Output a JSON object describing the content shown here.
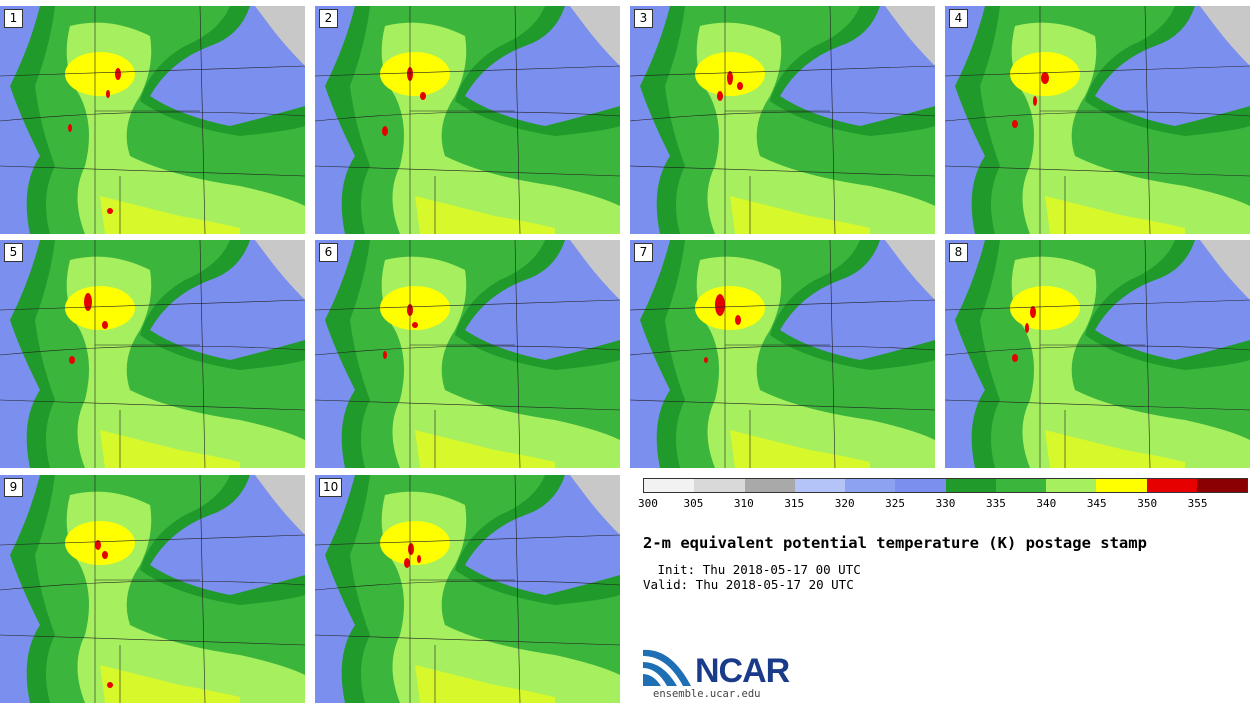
{
  "title": "2-m equivalent potential temperature (K) postage stamp",
  "init_line": " Init: Thu 2018-05-17 00 UTC",
  "valid_line": "Valid: Thu 2018-05-17 20 UTC",
  "logo": {
    "name": "NCAR",
    "url": "ensemble.ucar.edu"
  },
  "members": [
    {
      "label": "1"
    },
    {
      "label": "2"
    },
    {
      "label": "3"
    },
    {
      "label": "4"
    },
    {
      "label": "5"
    },
    {
      "label": "6"
    },
    {
      "label": "7"
    },
    {
      "label": "8"
    },
    {
      "label": "9"
    },
    {
      "label": "10"
    }
  ],
  "colorbar": {
    "ticks": [
      "300",
      "305",
      "310",
      "315",
      "320",
      "325",
      "330",
      "335",
      "340",
      "345",
      "350",
      "355"
    ],
    "colors": [
      "#f2f2f2",
      "#d9d9d9",
      "#a9a9a9",
      "#b4c4f8",
      "#8ea2f2",
      "#7b8fef",
      "#1f9a2b",
      "#3cb53c",
      "#a6ef5e",
      "#ffff00",
      "#e60000",
      "#8b0000"
    ]
  },
  "map_colors": {
    "water_light": "#c8c8c8",
    "blue": "#7b8fef",
    "dark_green": "#1f9a2b",
    "green": "#3cb53c",
    "light_green": "#a6ef5e",
    "yellow": "#ffff00",
    "red": "#e60000"
  }
}
